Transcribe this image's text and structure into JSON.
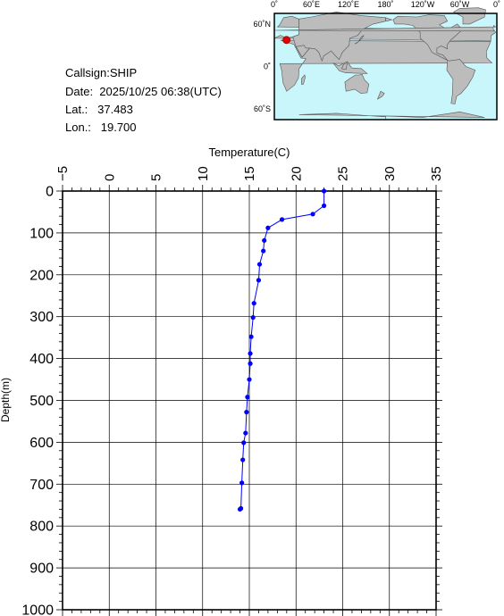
{
  "info": {
    "callsign": "Callsign:SHIP",
    "date": "Date:  2025/10/25 06:38(UTC)",
    "lat": "Lat.:   37.483",
    "lon": "Lon.:   19.700"
  },
  "map": {
    "top_ticks": [
      "0˚",
      "60˚E",
      "120˚E",
      "180˚",
      "120˚W",
      "60˚W",
      "0˚"
    ],
    "left_ticks": [
      "60˚N",
      "0˚",
      "60˚S"
    ],
    "ocean_color": "#c8f6fa",
    "land_color": "#bcbcbc",
    "marker_color": "#e00000",
    "station": {
      "lat": 37.483,
      "lon": 19.7
    }
  },
  "chart_data": {
    "type": "line",
    "xlabel": "Temperature(C)",
    "ylabel": "Depth(m)",
    "xlim": [
      -5,
      35
    ],
    "ylim": [
      0,
      1000
    ],
    "y_inverted": true,
    "x_axis_position": "top",
    "grid": true,
    "x_ticks": [
      -5,
      0,
      5,
      10,
      15,
      20,
      25,
      30,
      35
    ],
    "y_ticks": [
      0,
      100,
      200,
      300,
      400,
      500,
      600,
      700,
      800,
      900,
      1000
    ],
    "series_color": "#0000ff",
    "series": [
      {
        "x": [
          23.0,
          23.0,
          21.8,
          18.5,
          17.0,
          16.6,
          16.5,
          16.1,
          16.0,
          15.5,
          15.4,
          15.2,
          15.1,
          15.1,
          15.0,
          14.8,
          14.7,
          14.6,
          14.4,
          14.3,
          14.2,
          14.1,
          14.0
        ],
        "y": [
          0,
          35,
          55,
          68,
          88,
          118,
          143,
          175,
          213,
          268,
          302,
          348,
          388,
          412,
          450,
          492,
          528,
          578,
          601,
          642,
          697,
          758,
          760
        ]
      }
    ]
  }
}
